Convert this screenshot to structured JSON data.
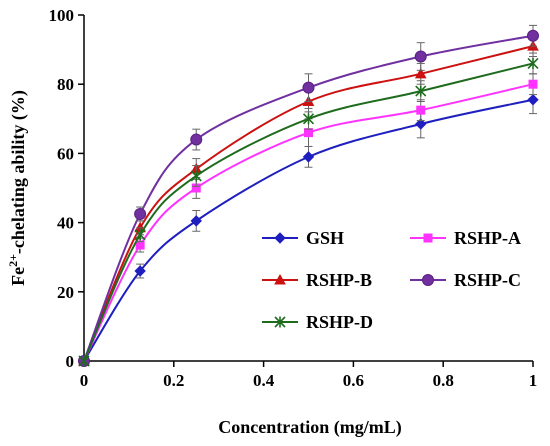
{
  "chart_data": {
    "type": "line",
    "xlabel": "Concentration (mg/mL)",
    "ylabel": {
      "prefix": "Fe",
      "sup": "2+",
      "suffix": "-chelating ability (%)"
    },
    "xlim": [
      0,
      1
    ],
    "ylim": [
      0,
      100
    ],
    "x_ticks": [
      0,
      0.2,
      0.4,
      0.6,
      0.8,
      1
    ],
    "x_tick_labels": [
      "0",
      "0.2",
      "0.4",
      "0.6",
      "0.8",
      "1"
    ],
    "y_ticks": [
      0,
      20,
      40,
      60,
      80,
      100
    ],
    "y_tick_labels": [
      "0",
      "20",
      "40",
      "60",
      "80",
      "100"
    ],
    "grid": false,
    "legend_position": "bottom-right",
    "x": [
      0,
      0.125,
      0.25,
      0.5,
      0.75,
      1
    ],
    "series": [
      {
        "name": "GSH",
        "color": "#1F1FBF",
        "marker": "diamond",
        "values": [
          0,
          26,
          40.5,
          59,
          68.5,
          75.5
        ],
        "errors": [
          0,
          2,
          3,
          3,
          4,
          4
        ]
      },
      {
        "name": "RSHP-A",
        "color": "#FF33FF",
        "marker": "square",
        "values": [
          0,
          33.5,
          50,
          66,
          72.5,
          80
        ],
        "errors": [
          0,
          2,
          3,
          4,
          3,
          3
        ]
      },
      {
        "name": "RSHP-B",
        "color": "#CC1111",
        "marker": "triangle",
        "values": [
          0,
          38.5,
          55.5,
          75,
          83,
          91
        ],
        "errors": [
          0,
          2,
          3,
          3,
          3,
          3
        ]
      },
      {
        "name": "RSHP-C",
        "color": "#7030A0",
        "marker": "circle",
        "values": [
          0,
          42.5,
          64,
          79,
          88,
          94
        ],
        "errors": [
          0,
          2,
          3,
          4,
          4,
          3
        ]
      },
      {
        "name": "RSHP-D",
        "color": "#1E6B1E",
        "marker": "star",
        "values": [
          0,
          36.5,
          53.5,
          70,
          78,
          86
        ],
        "errors": [
          0,
          2,
          3,
          3,
          3,
          3
        ]
      }
    ]
  }
}
